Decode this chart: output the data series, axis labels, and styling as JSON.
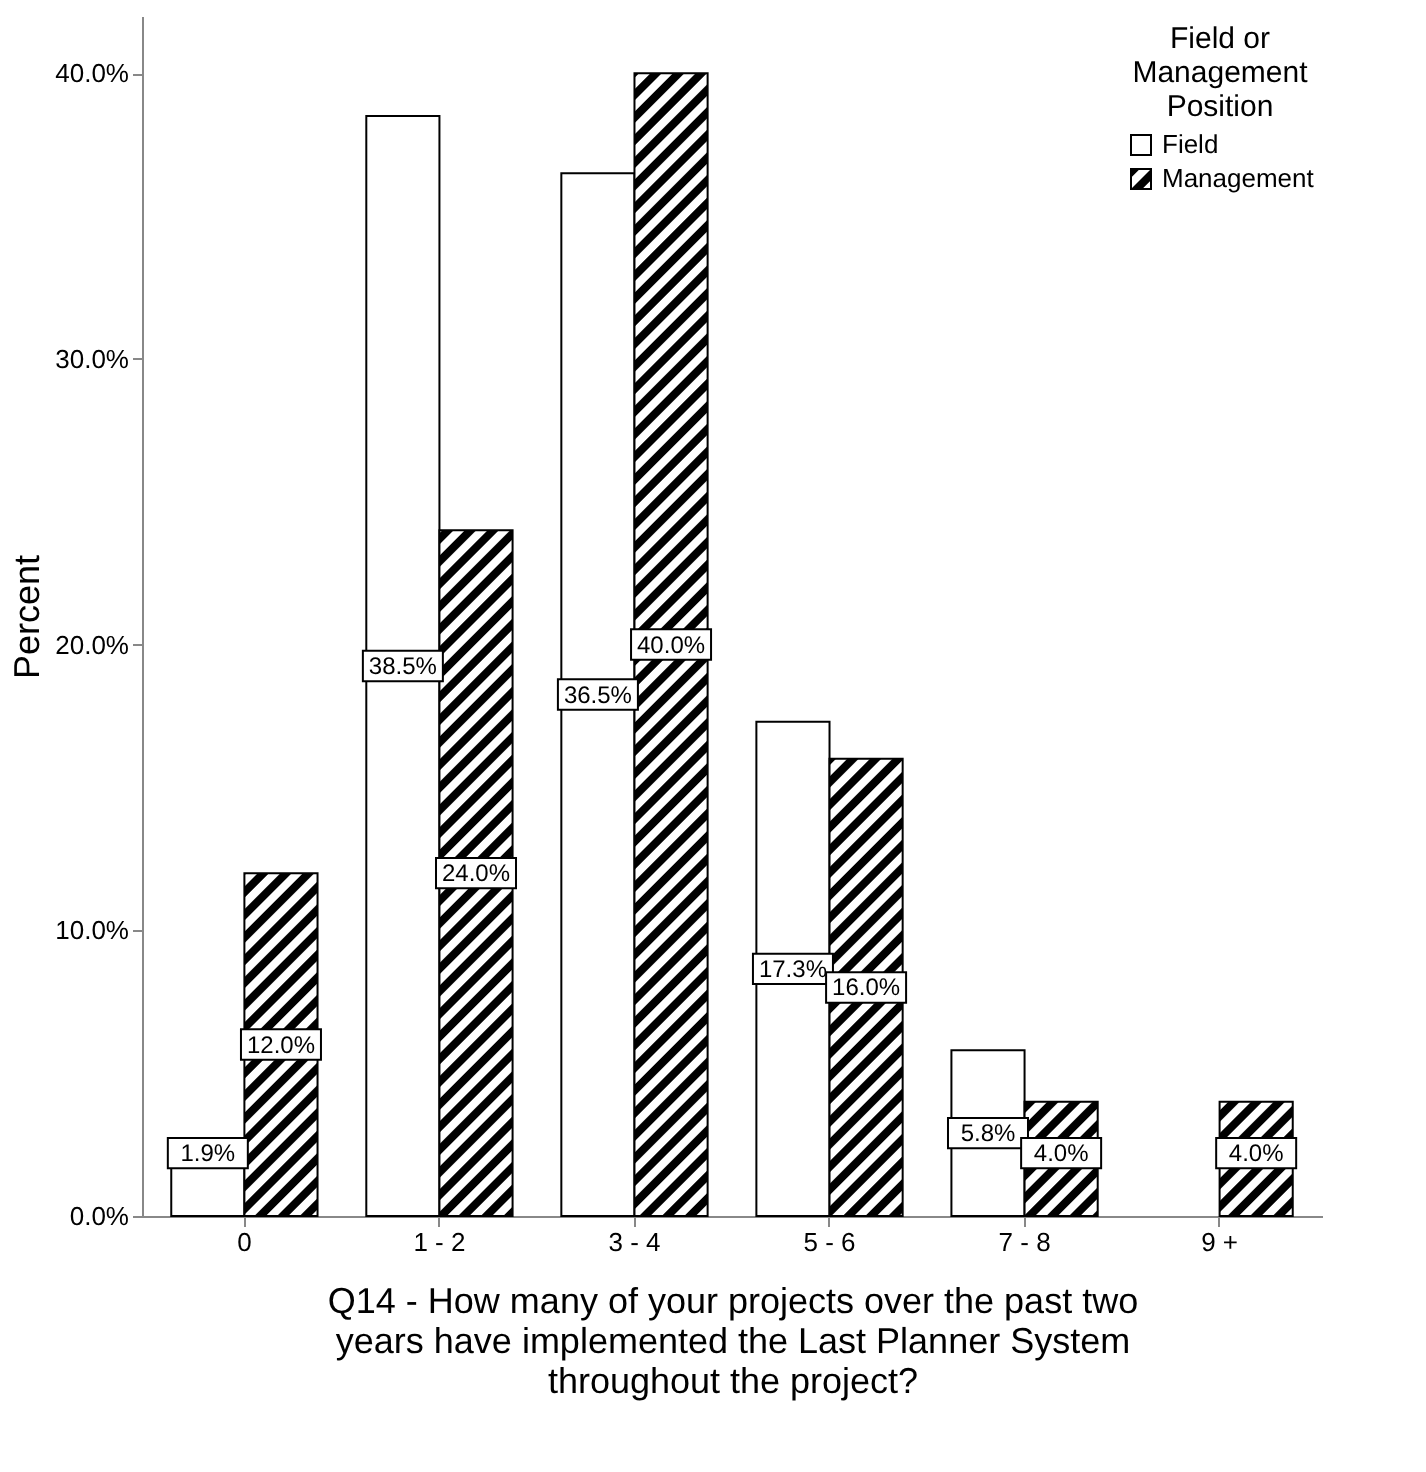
{
  "chart_data": {
    "type": "bar",
    "xlabel": "Q14 - How many of your projects over the past two years have implemented the Last Planner System throughout the project?",
    "ylabel": "Percent",
    "legend_title": "Field or Management Position",
    "legend": "top right",
    "grid": false,
    "categories": [
      "0",
      "1 - 2",
      "3 - 4",
      "5 - 6",
      "7 - 8",
      "9 +"
    ],
    "ylim": [
      0,
      42
    ],
    "yticks": [
      {
        "value": 0,
        "label": "0.0%"
      },
      {
        "value": 10,
        "label": "10.0%"
      },
      {
        "value": 20,
        "label": "20.0%"
      },
      {
        "value": 30,
        "label": "30.0%"
      },
      {
        "value": 40,
        "label": "40.0%"
      }
    ],
    "series": [
      {
        "name": "Field",
        "color": "#ffffff",
        "values": [
          1.9,
          38.5,
          36.5,
          17.3,
          5.8,
          null
        ],
        "value_labels": [
          "1.9%",
          "38.5%",
          "36.5%",
          "17.3%",
          "5.8%",
          null
        ]
      },
      {
        "name": "Management",
        "color": "#000000",
        "values": [
          12.0,
          24.0,
          40.0,
          16.0,
          4.0,
          4.0
        ],
        "value_labels": [
          "12.0%",
          "24.0%",
          "40.0%",
          "16.0%",
          "4.0%",
          "4.0%"
        ]
      }
    ]
  }
}
